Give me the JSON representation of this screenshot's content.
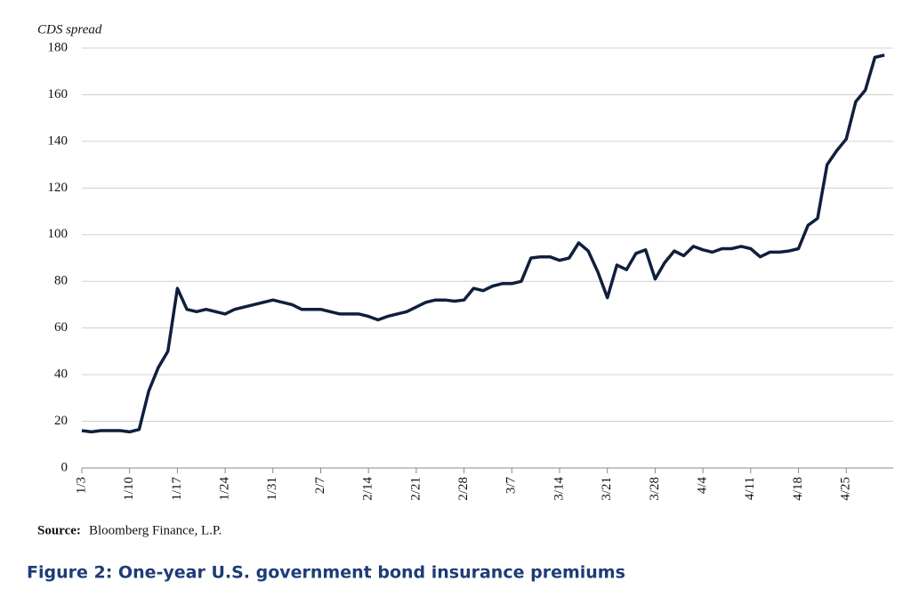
{
  "chart_data": {
    "type": "line",
    "y_label": "CDS spread",
    "categories": [
      "1/3",
      null,
      null,
      null,
      null,
      "1/10",
      null,
      null,
      null,
      null,
      "1/17",
      null,
      null,
      null,
      null,
      "1/24",
      null,
      null,
      null,
      null,
      "1/31",
      null,
      null,
      null,
      null,
      "2/7",
      null,
      null,
      null,
      null,
      "2/14",
      null,
      null,
      null,
      null,
      "2/21",
      null,
      null,
      null,
      null,
      "2/28",
      null,
      null,
      null,
      null,
      "3/7",
      null,
      null,
      null,
      null,
      "3/14",
      null,
      null,
      null,
      null,
      "3/21",
      null,
      null,
      null,
      null,
      "3/28",
      null,
      null,
      null,
      null,
      "4/4",
      null,
      null,
      null,
      null,
      "4/11",
      null,
      null,
      null,
      null,
      "4/18",
      null,
      null,
      null,
      null,
      "4/25",
      null,
      null,
      null,
      null
    ],
    "series": [
      {
        "name": "CDS spread",
        "color": "#0f1f3d",
        "values": [
          16,
          15.5,
          16,
          16,
          16,
          15.5,
          16.5,
          33,
          43,
          50,
          77,
          68,
          67,
          68,
          67,
          66,
          68,
          69,
          70,
          71,
          72,
          71,
          70,
          68,
          68,
          68,
          67,
          66,
          66,
          66,
          65,
          63.5,
          65,
          66,
          67,
          69,
          71,
          72,
          72,
          71.5,
          72,
          77,
          76,
          78,
          79,
          79,
          80,
          90,
          90.5,
          90.5,
          89,
          90,
          96.5,
          93,
          84,
          73,
          87,
          85,
          92,
          93.5,
          81,
          88,
          93,
          91,
          95,
          93.5,
          92.5,
          94,
          94,
          95,
          94,
          90.5,
          92.5,
          92.5,
          93,
          94,
          104,
          107,
          130,
          136,
          141,
          157,
          162,
          176,
          177
        ]
      }
    ],
    "ylim": [
      0,
      180
    ],
    "yticks": [
      0,
      20,
      40,
      60,
      80,
      100,
      120,
      140,
      160,
      180
    ],
    "grid": true,
    "source_label": "Source:",
    "source": "Bloomberg Finance, L.P.",
    "caption": "Figure 2: One-year U.S. government bond insurance premiums"
  }
}
